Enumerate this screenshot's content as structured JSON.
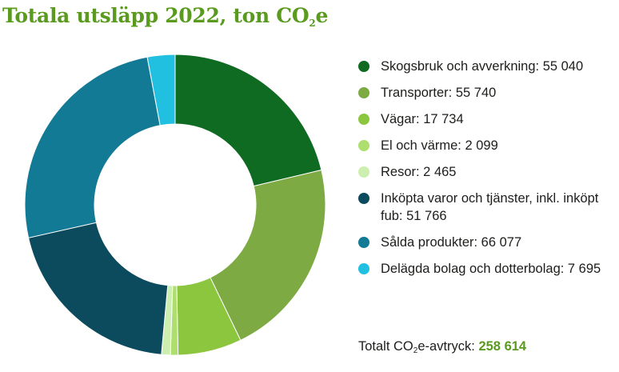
{
  "title": {
    "main": "Totala utsläpp 2022, ton CO",
    "sub": "2",
    "suffix": "e"
  },
  "chart_data": {
    "type": "pie",
    "title": "Totala utsläpp 2022, ton CO2e",
    "categories": [
      "Skogsbruk och avverkning",
      "Transporter",
      "Vägar",
      "El och värme",
      "Resor",
      "Inköpta varor och tjänster, inkl. inköpt fub",
      "Sålda produkter",
      "Delägda bolag och dotterbolag"
    ],
    "values": [
      55040,
      55740,
      17734,
      2099,
      2465,
      51766,
      66077,
      7695
    ],
    "colors": [
      "#0f6a22",
      "#7daa42",
      "#8cc63f",
      "#aede6e",
      "#ccefb0",
      "#0c4a5e",
      "#127a95",
      "#22c0e0"
    ],
    "hole": "donut",
    "legend": "right"
  },
  "legend_items": [
    {
      "label": "Skogsbruk och avverkning: 55 040"
    },
    {
      "label": "Transporter: 55 740"
    },
    {
      "label": "Vägar: 17 734"
    },
    {
      "label": "El och värme: 2 099"
    },
    {
      "label": "Resor: 2 465"
    },
    {
      "label": "Inköpta varor och tjänster, inkl. inköpt fub: 51 766"
    },
    {
      "label": "Sålda produkter: 66 077"
    },
    {
      "label": "Delägda bolag och dotterbolag: 7 695"
    }
  ],
  "total": {
    "prefix": "Totalt CO",
    "sub": "2",
    "suffix": "e-avtryck: ",
    "value": "258 614"
  }
}
